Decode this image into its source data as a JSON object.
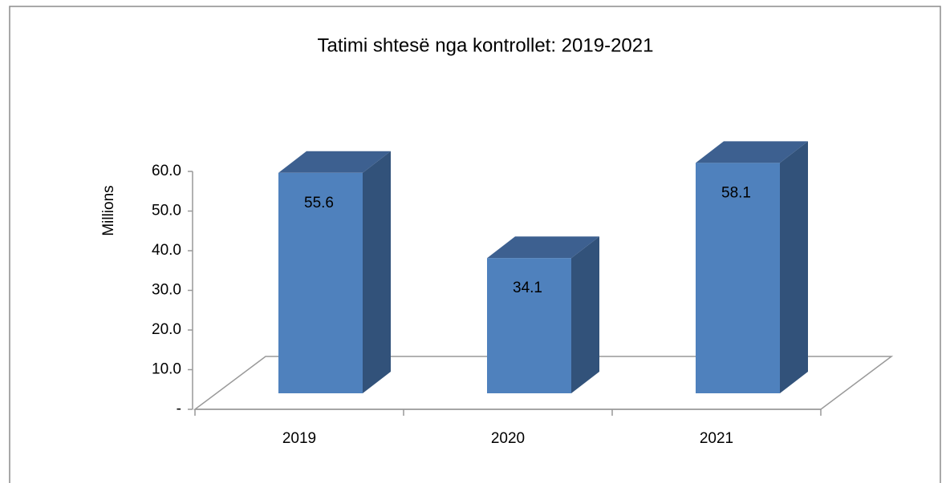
{
  "chart_data": {
    "type": "bar3d",
    "title": "Tatimi shtesë nga kontrollet: 2019-2021",
    "y_label": "Millions",
    "categories": [
      "2019",
      "2020",
      "2021"
    ],
    "values": [
      55.6,
      34.1,
      58.1
    ],
    "color": "#4f81bd",
    "ylim": [
      0,
      60
    ],
    "yticks": [
      {
        "value": 0,
        "label": "-"
      },
      {
        "value": 10,
        "label": "10.0"
      },
      {
        "value": 20,
        "label": "20.0"
      },
      {
        "value": 30,
        "label": "30.0"
      },
      {
        "value": 40,
        "label": "40.0"
      },
      {
        "value": 50,
        "label": "50.0"
      },
      {
        "value": 60,
        "label": "60.0"
      }
    ]
  }
}
